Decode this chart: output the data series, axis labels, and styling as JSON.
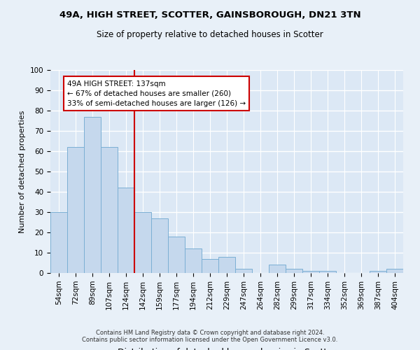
{
  "title": "49A, HIGH STREET, SCOTTER, GAINSBOROUGH, DN21 3TN",
  "subtitle": "Size of property relative to detached houses in Scotter",
  "xlabel": "Distribution of detached houses by size in Scotter",
  "ylabel": "Number of detached properties",
  "categories": [
    "54sqm",
    "72sqm",
    "89sqm",
    "107sqm",
    "124sqm",
    "142sqm",
    "159sqm",
    "177sqm",
    "194sqm",
    "212sqm",
    "229sqm",
    "247sqm",
    "264sqm",
    "282sqm",
    "299sqm",
    "317sqm",
    "334sqm",
    "352sqm",
    "369sqm",
    "387sqm",
    "404sqm"
  ],
  "values": [
    30,
    62,
    77,
    62,
    42,
    30,
    27,
    18,
    12,
    7,
    8,
    2,
    0,
    4,
    2,
    1,
    1,
    0,
    0,
    1,
    2
  ],
  "bar_color": "#c5d8ed",
  "bar_edge_color": "#7bafd4",
  "plot_bg_color": "#dce8f5",
  "fig_bg_color": "#e8f0f8",
  "grid_color": "#ffffff",
  "vline_color": "#cc0000",
  "vline_x_index": 4.5,
  "annotation_text": "49A HIGH STREET: 137sqm\n← 67% of detached houses are smaller (260)\n33% of semi-detached houses are larger (126) →",
  "annotation_box_color": "#ffffff",
  "annotation_box_edge_color": "#cc0000",
  "footer_text": "Contains HM Land Registry data © Crown copyright and database right 2024.\nContains public sector information licensed under the Open Government Licence v3.0.",
  "ylim": [
    0,
    100
  ],
  "yticks": [
    0,
    10,
    20,
    30,
    40,
    50,
    60,
    70,
    80,
    90,
    100
  ],
  "title_fontsize": 9.5,
  "subtitle_fontsize": 8.5,
  "ylabel_fontsize": 8,
  "xlabel_fontsize": 9,
  "tick_fontsize": 7.5,
  "annotation_fontsize": 7.5,
  "footer_fontsize": 6.0
}
